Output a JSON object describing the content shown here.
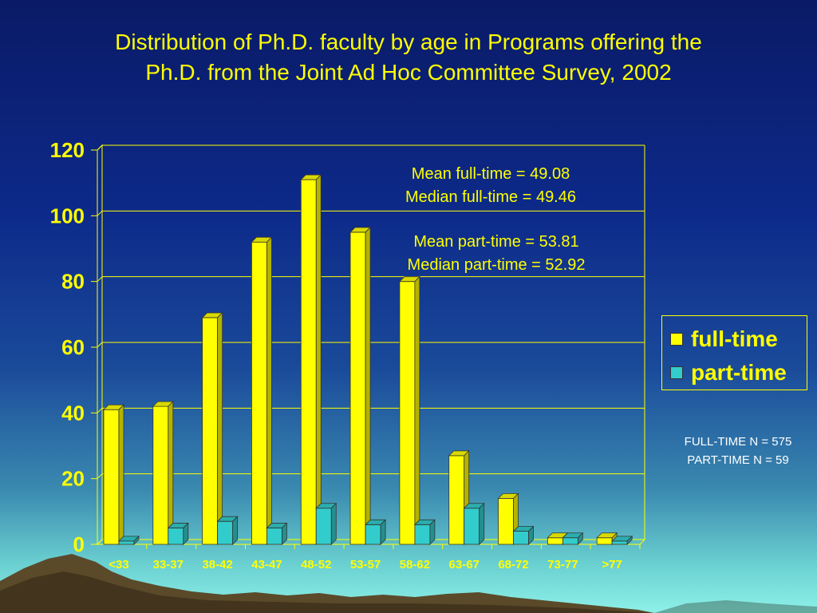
{
  "title_lines": [
    "Distribution of Ph.D. faculty by age in Programs offering the",
    "Ph.D. from the Joint Ad Hoc Committee Survey, 2002"
  ],
  "annotations": {
    "fulltime_mean": "Mean full-time = 49.08",
    "fulltime_median": "Median full-time = 49.46",
    "parttime_mean": "Mean part-time = 53.81",
    "parttime_median": "Median part-time = 52.92"
  },
  "counts": {
    "fulltime_n": "FULL-TIME N = 575",
    "parttime_n": "PART-TIME N = 59"
  },
  "colors": {
    "fulltime": "#ffff00",
    "parttime": "#33cccc",
    "text": "#ffff00",
    "grid": "#ffff00"
  },
  "chart_data": {
    "type": "bar",
    "title": "Distribution of Ph.D. faculty by age in Programs offering the Ph.D. from the Joint Ad Hoc Committee Survey, 2002",
    "categories": [
      "<33",
      "33-37",
      "38-42",
      "43-47",
      "48-52",
      "53-57",
      "58-62",
      "63-67",
      "68-72",
      "73-77",
      ">77"
    ],
    "series": [
      {
        "name": "full-time",
        "values": [
          41,
          42,
          69,
          92,
          111,
          95,
          80,
          27,
          14,
          2,
          2
        ]
      },
      {
        "name": "part-time",
        "values": [
          1,
          5,
          7,
          5,
          11,
          6,
          6,
          11,
          4,
          2,
          1
        ]
      }
    ],
    "ylim": [
      0,
      120
    ],
    "yticks": [
      0,
      20,
      40,
      60,
      80,
      100,
      120
    ],
    "xlabel": "",
    "ylabel": "",
    "grid": true,
    "legend": "right"
  }
}
